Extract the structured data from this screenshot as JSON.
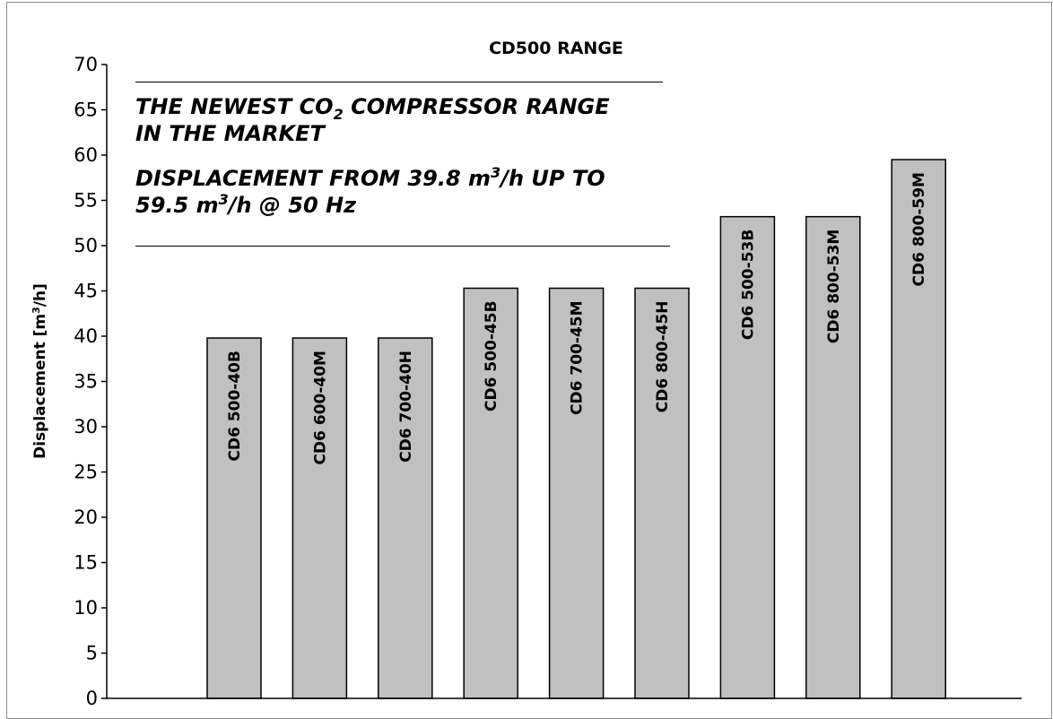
{
  "annotation": {
    "line1_prefix": "THE NEWEST CO",
    "line1_sub": "2",
    "line1_suffix": " COMPRESSOR RANGE",
    "line2": "IN THE MARKET",
    "line3_prefix": "DISPLACEMENT FROM 39.8 m",
    "line3_sup": "3",
    "line3_suffix": "/h UP TO",
    "line4_prefix": "59.5 m",
    "line4_sup": "3",
    "line4_suffix": "/h @ 50 Hz"
  },
  "chart_data": {
    "type": "bar",
    "title": "CD500 RANGE",
    "xlabel": "",
    "ylabel": "Displacement [m3/h]",
    "ylabel_prefix": "Displacement [m",
    "ylabel_sup": "3",
    "ylabel_suffix": "/h]",
    "ylim": [
      0,
      70
    ],
    "yticks": [
      0,
      5,
      10,
      15,
      20,
      25,
      30,
      35,
      40,
      45,
      50,
      55,
      60,
      65,
      70
    ],
    "grid": false,
    "legend": "none",
    "bar_color": "#c0c0c0",
    "bar_border_color": "#000000",
    "categories": [
      "CD6 500-40B",
      "CD6 600-40M",
      "CD6 700-40H",
      "CD6 500-45B",
      "CD6 700-45M",
      "CD6 800-45H",
      "CD6 500-53B",
      "CD6 800-53M",
      "CD6 800-59M"
    ],
    "values": [
      39.8,
      39.8,
      39.8,
      45.3,
      45.3,
      45.3,
      53.2,
      53.2,
      59.5
    ]
  }
}
